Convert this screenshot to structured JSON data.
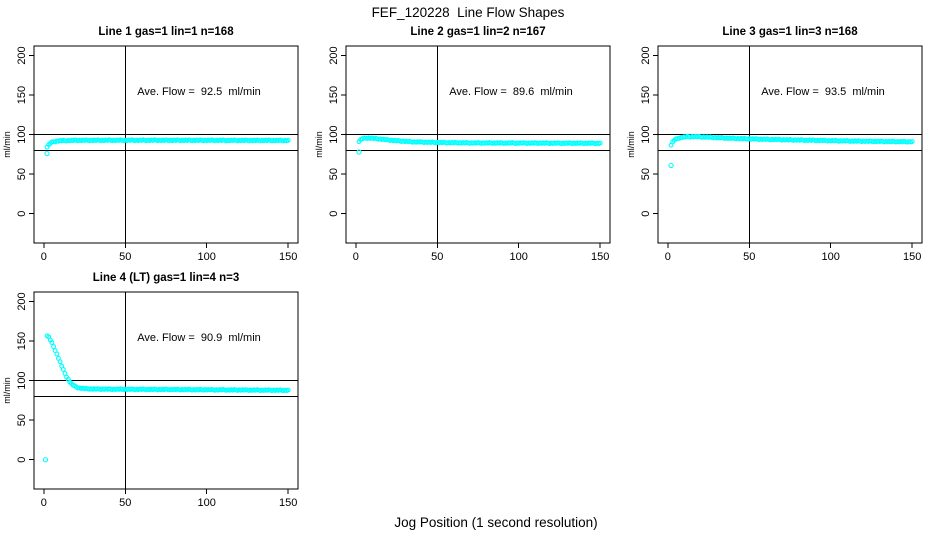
{
  "figure": {
    "title": "FEF_120228  Line Flow Shapes",
    "xlabel": "Jog Position (1 second resolution)",
    "background_color": "#ffffff",
    "axis_color": "#000000",
    "marker_color": "#00FFFF"
  },
  "chart_data": [
    {
      "type": "scatter",
      "title": "Line 1 gas=1 lin=1 n=168",
      "line": 1,
      "gas": 1,
      "lin": 1,
      "n": 168,
      "annotation": "Ave. Flow =  92.5  ml/min",
      "ave_flow_ml_min": 92.5,
      "ylabel": "ml/min",
      "xlim": [
        -6,
        156
      ],
      "ylim": [
        -37,
        212
      ],
      "x_ticks": [
        0,
        50,
        100,
        150
      ],
      "y_ticks": [
        0,
        50,
        100,
        150,
        200
      ],
      "hlines": [
        100,
        80
      ],
      "vlines": [
        50
      ],
      "grid": false,
      "series": {
        "x_start": 2,
        "x_end": 150,
        "x_step": 1,
        "profile": [
          [
            2,
            84.5
          ],
          [
            3,
            87
          ],
          [
            4,
            89
          ],
          [
            5,
            90.2
          ],
          [
            6,
            91
          ],
          [
            8,
            91.8
          ],
          [
            10,
            92.2
          ],
          [
            15,
            92.5
          ],
          [
            20,
            92.7
          ],
          [
            40,
            92.8
          ],
          [
            70,
            92.8
          ],
          [
            100,
            92.7
          ],
          [
            130,
            92.6
          ],
          [
            150,
            92.5
          ]
        ],
        "outliers": [
          [
            2,
            76
          ]
        ]
      }
    },
    {
      "type": "scatter",
      "title": "Line 2 gas=1 lin=2 n=167",
      "line": 2,
      "gas": 1,
      "lin": 2,
      "n": 167,
      "annotation": "Ave. Flow =  89.6  ml/min",
      "ave_flow_ml_min": 89.6,
      "ylabel": "ml/min",
      "xlim": [
        -6,
        156
      ],
      "ylim": [
        -37,
        212
      ],
      "x_ticks": [
        0,
        50,
        100,
        150
      ],
      "y_ticks": [
        0,
        50,
        100,
        150,
        200
      ],
      "hlines": [
        100,
        80
      ],
      "vlines": [
        50
      ],
      "grid": false,
      "series": {
        "x_start": 2,
        "x_end": 150,
        "x_step": 1,
        "profile": [
          [
            2,
            91.5
          ],
          [
            3,
            93.5
          ],
          [
            4,
            94.8
          ],
          [
            6,
            95.6
          ],
          [
            8,
            95.7
          ],
          [
            10,
            95.4
          ],
          [
            14,
            94.6
          ],
          [
            18,
            93.6
          ],
          [
            25,
            92.2
          ],
          [
            35,
            90.8
          ],
          [
            50,
            90
          ],
          [
            70,
            89.5
          ],
          [
            100,
            89.3
          ],
          [
            130,
            89.1
          ],
          [
            150,
            89
          ]
        ],
        "outliers": [
          [
            2,
            78
          ]
        ]
      }
    },
    {
      "type": "scatter",
      "title": "Line 3 gas=1 lin=3 n=168",
      "line": 3,
      "gas": 1,
      "lin": 3,
      "n": 168,
      "annotation": "Ave. Flow =  93.5  ml/min",
      "ave_flow_ml_min": 93.5,
      "ylabel": "ml/min",
      "xlim": [
        -6,
        156
      ],
      "ylim": [
        -37,
        212
      ],
      "x_ticks": [
        0,
        50,
        100,
        150
      ],
      "y_ticks": [
        0,
        50,
        100,
        150,
        200
      ],
      "hlines": [
        100,
        80
      ],
      "vlines": [
        50
      ],
      "grid": false,
      "series": {
        "x_start": 2,
        "x_end": 150,
        "x_step": 1,
        "profile": [
          [
            2,
            87
          ],
          [
            3,
            90.5
          ],
          [
            4,
            92.8
          ],
          [
            5,
            94.2
          ],
          [
            7,
            95.8
          ],
          [
            9,
            96.7
          ],
          [
            12,
            97.3
          ],
          [
            16,
            97.5
          ],
          [
            20,
            97.2
          ],
          [
            25,
            96.7
          ],
          [
            30,
            96.1
          ],
          [
            40,
            95.2
          ],
          [
            50,
            94.6
          ],
          [
            60,
            94
          ],
          [
            75,
            93.3
          ],
          [
            90,
            92.7
          ],
          [
            105,
            92.1
          ],
          [
            120,
            91.6
          ],
          [
            135,
            91.2
          ],
          [
            150,
            90.9
          ]
        ],
        "outliers": [
          [
            2,
            61
          ]
        ]
      }
    },
    {
      "type": "scatter",
      "title": "Line 4 (LT) gas=1 lin=4 n=3",
      "line": 4,
      "gas": 1,
      "lin": 4,
      "n": 3,
      "annotation": "Ave. Flow =  90.9  ml/min",
      "ave_flow_ml_min": 90.9,
      "ylabel": "ml/min",
      "xlim": [
        -6,
        156
      ],
      "ylim": [
        -37,
        212
      ],
      "x_ticks": [
        0,
        50,
        100,
        150
      ],
      "y_ticks": [
        0,
        50,
        100,
        150,
        200
      ],
      "hlines": [
        100,
        80
      ],
      "vlines": [
        50
      ],
      "grid": false,
      "series": {
        "x_start": 2,
        "x_end": 150,
        "x_step": 1,
        "profile": [
          [
            2,
            157
          ],
          [
            3,
            155
          ],
          [
            4,
            151.5
          ],
          [
            5,
            147.5
          ],
          [
            6,
            143
          ],
          [
            7,
            138.5
          ],
          [
            8,
            133.5
          ],
          [
            9,
            128.5
          ],
          [
            10,
            123.5
          ],
          [
            11,
            118.5
          ],
          [
            12,
            113.5
          ],
          [
            13,
            109
          ],
          [
            14,
            105
          ],
          [
            15,
            101.5
          ],
          [
            16,
            98.5
          ],
          [
            17,
            96
          ],
          [
            18,
            94.3
          ],
          [
            19,
            92.8
          ],
          [
            20,
            91.8
          ],
          [
            22,
            90.6
          ],
          [
            25,
            89.8
          ],
          [
            30,
            89.4
          ],
          [
            40,
            89.1
          ],
          [
            60,
            88.9
          ],
          [
            80,
            88.7
          ],
          [
            100,
            88.4
          ],
          [
            120,
            88.1
          ],
          [
            150,
            87.7
          ]
        ],
        "outliers": [
          [
            1,
            0
          ]
        ]
      }
    }
  ]
}
